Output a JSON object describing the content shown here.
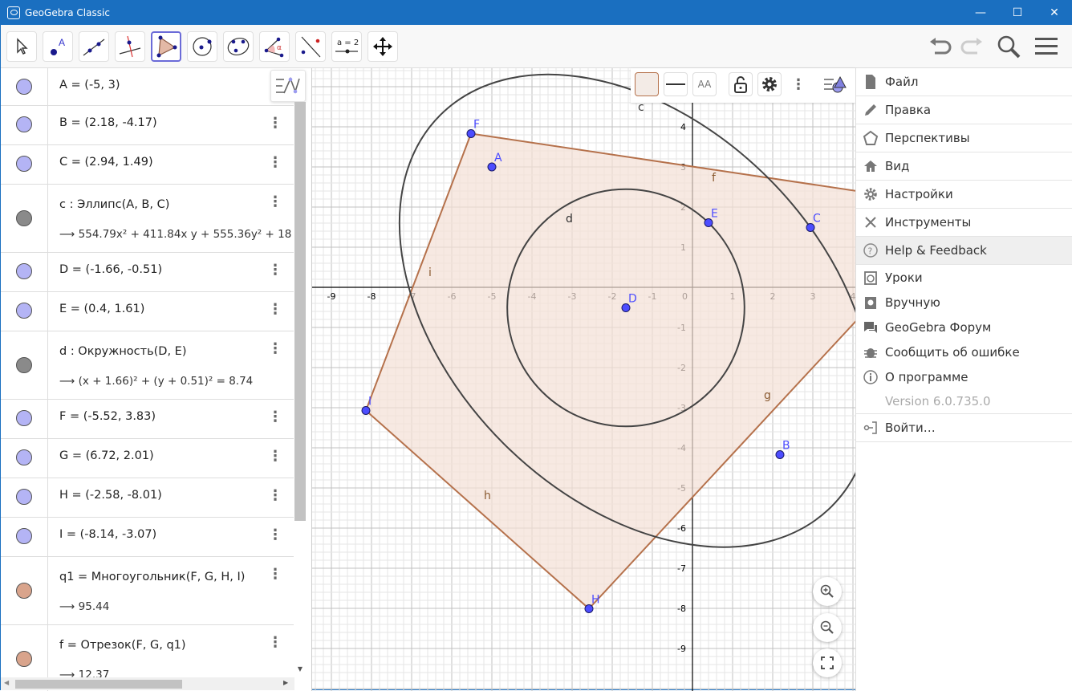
{
  "window": {
    "title": "GeoGebra Classic",
    "controls": [
      "minimize",
      "maximize",
      "close"
    ]
  },
  "toolbar": {
    "tools": [
      {
        "name": "move",
        "icon": "arrow-cursor-icon"
      },
      {
        "name": "point",
        "icon": "point-icon",
        "label": "A"
      },
      {
        "name": "line",
        "icon": "line-icon"
      },
      {
        "name": "perpendicular",
        "icon": "perpendicular-line-icon"
      },
      {
        "name": "polygon",
        "icon": "polygon-icon",
        "selected": true
      },
      {
        "name": "circle-center-point",
        "icon": "circle-icon"
      },
      {
        "name": "ellipse",
        "icon": "ellipse-icon"
      },
      {
        "name": "angle",
        "icon": "angle-icon",
        "label": "α"
      },
      {
        "name": "reflect",
        "icon": "reflect-icon"
      },
      {
        "name": "slider",
        "icon": "slider-icon",
        "label": "a = 2"
      },
      {
        "name": "move-graphics",
        "icon": "move-arrows-icon"
      }
    ],
    "right": [
      "undo-icon",
      "redo-icon",
      "search-icon",
      "menu-icon"
    ]
  },
  "algebra": {
    "rows": [
      {
        "def": "A = (-5, 3)",
        "color": "#b4b4f5",
        "dots": false
      },
      {
        "def": "B = (2.18, -4.17)",
        "color": "#b4b4f5"
      },
      {
        "def": "C = (2.94, 1.49)",
        "color": "#b4b4f5"
      },
      {
        "def": "c : Эллипс(A, B, C)",
        "val": "⟶  554.79x² + 411.84x y + 555.36y² + 18",
        "color": "#8a8a8a"
      },
      {
        "def": "D = (-1.66, -0.51)",
        "color": "#b4b4f5"
      },
      {
        "def": "E = (0.4, 1.61)",
        "color": "#b4b4f5"
      },
      {
        "def": "d : Окружность(D, E)",
        "val": "⟶  (x + 1.66)² + (y + 0.51)² = 8.74",
        "color": "#8a8a8a"
      },
      {
        "def": "F = (-5.52, 3.83)",
        "color": "#b4b4f5"
      },
      {
        "def": "G = (6.72, 2.01)",
        "color": "#b4b4f5"
      },
      {
        "def": "H = (-2.58, -8.01)",
        "color": "#b4b4f5"
      },
      {
        "def": "I = (-8.14, -3.07)",
        "color": "#b4b4f5"
      },
      {
        "def": "q1 = Многоугольник(F, G, H, I)",
        "val": "⟶  95.44",
        "color": "#d9a48c"
      },
      {
        "def": "f = Отрезок(F, G, q1)",
        "val": "⟶  12.37",
        "color": "#d9a48c"
      }
    ]
  },
  "graphics": {
    "points": {
      "A": [
        -5,
        3
      ],
      "B": [
        2.18,
        -4.17
      ],
      "C": [
        2.94,
        1.49
      ],
      "D": [
        -1.66,
        -0.51
      ],
      "E": [
        0.4,
        1.61
      ],
      "F": [
        -5.52,
        3.83
      ],
      "G": [
        6.72,
        2.01
      ],
      "H": [
        -2.58,
        -8.01
      ],
      "I": [
        -8.14,
        -3.07
      ]
    },
    "ellipse": {
      "label": "c",
      "foci": [
        "A",
        "B"
      ],
      "through": "C"
    },
    "circle": {
      "label": "d",
      "center": "D",
      "through": "E"
    },
    "polygon": {
      "label": "q1",
      "vertices": [
        "F",
        "G",
        "H",
        "I"
      ],
      "segments": [
        "f",
        "g",
        "h",
        "i"
      ]
    },
    "x_ticks": [
      -9,
      -8,
      -7,
      -6,
      -5,
      -4,
      -3,
      -2,
      -1,
      1,
      2,
      3,
      4
    ],
    "y_ticks": [
      4,
      3,
      2,
      1,
      -1,
      -2,
      -3,
      -4,
      -5,
      -6,
      -7,
      -8,
      -9
    ],
    "origin_label": "0",
    "colors": {
      "point": "#4d4dff",
      "conic": "#444444",
      "polygon": "#b5714b",
      "polygon_fill": "#f3e0d6",
      "grid_minor": "#e6e6e6",
      "grid_major": "#c0c0c0"
    },
    "zoom_buttons": [
      "zoom-in-icon",
      "zoom-out-icon",
      "fullscreen-icon"
    ]
  },
  "stylebar": {
    "buttons": [
      "color-icon",
      "line-style-icon",
      "label-style-icon",
      "lock-icon",
      "settings-icon",
      "more-icon",
      "graphics-toggle-icon"
    ],
    "label_style": "AA"
  },
  "menu": {
    "items": [
      {
        "label": "Файл",
        "icon": "file-icon"
      },
      {
        "label": "Правка",
        "icon": "pencil-icon"
      },
      {
        "label": "Перспективы",
        "icon": "perspectives-icon"
      },
      {
        "label": "Вид",
        "icon": "home-icon"
      },
      {
        "label": "Настройки",
        "icon": "gear-icon"
      },
      {
        "label": "Инструменты",
        "icon": "tools-icon"
      },
      {
        "label": "Help & Feedback",
        "icon": "help-icon",
        "highlight": true
      },
      {
        "label": "Уроки",
        "icon": "tutorials-icon"
      },
      {
        "label": "Вручную",
        "icon": "manual-icon"
      },
      {
        "label": "GeoGebra Форум",
        "icon": "forum-icon"
      },
      {
        "label": "Сообщить об ошибке",
        "icon": "bug-icon"
      },
      {
        "label": "О программе",
        "icon": "info-icon"
      },
      {
        "label": "Version 6.0.735.0",
        "icon": "",
        "muted": true
      },
      {
        "label": "Войти…",
        "icon": "sign-in-icon"
      }
    ]
  }
}
